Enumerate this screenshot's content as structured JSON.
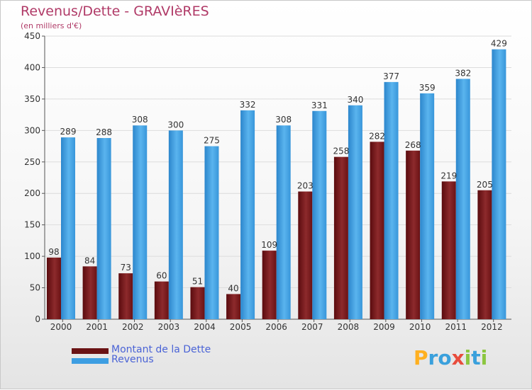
{
  "title": "Revenus/Dette - GRAVIèRES",
  "subtitle": "(en milliers d'€)",
  "logo": {
    "text": "Proxiti",
    "letters": [
      "P",
      "r",
      "o",
      "x",
      "i",
      "t",
      "i"
    ]
  },
  "chart_data": {
    "type": "bar",
    "title": "Revenus/Dette - GRAVIèRES",
    "subtitle": "(en milliers d'€)",
    "categories": [
      "2000",
      "2001",
      "2002",
      "2003",
      "2004",
      "2005",
      "2006",
      "2007",
      "2008",
      "2009",
      "2010",
      "2011",
      "2012"
    ],
    "series": [
      {
        "name": "Montant de la Dette",
        "color": "#7a1518",
        "values": [
          98,
          84,
          73,
          60,
          51,
          40,
          109,
          203,
          258,
          282,
          268,
          219,
          205
        ]
      },
      {
        "name": "Revenus",
        "color": "#3d9ee2",
        "values": [
          289,
          288,
          308,
          300,
          275,
          332,
          308,
          331,
          340,
          377,
          359,
          382,
          429
        ]
      }
    ],
    "ylim": [
      0,
      450
    ],
    "yticks": [
      0,
      50,
      100,
      150,
      200,
      250,
      300,
      350,
      400,
      450
    ],
    "xlabel": "",
    "ylabel": "",
    "grid": true,
    "legend_position": "bottom-left",
    "data_labels": true
  }
}
